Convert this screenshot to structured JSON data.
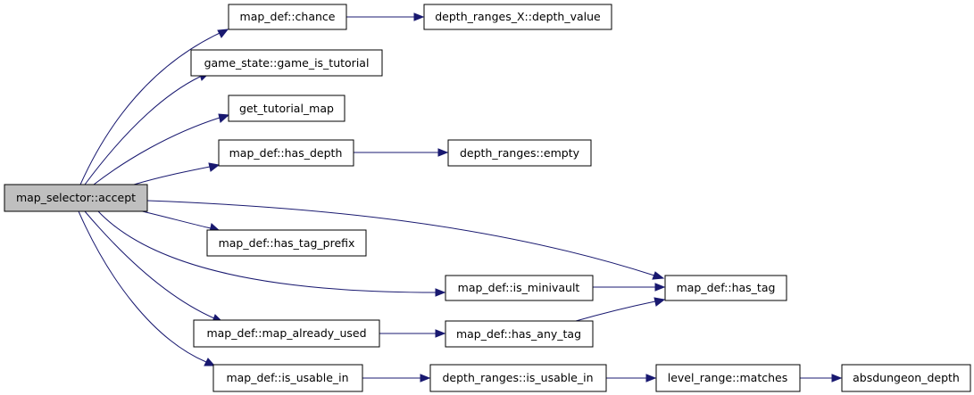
{
  "diagram": {
    "nodes": {
      "accept": "map_selector::accept",
      "chance": "map_def::chance",
      "depth_value": "depth_ranges_X::depth_value",
      "game_is_tutorial": "game_state::game_is_tutorial",
      "get_tutorial_map": "get_tutorial_map",
      "has_depth": "map_def::has_depth",
      "empty": "depth_ranges::empty",
      "has_tag_prefix": "map_def::has_tag_prefix",
      "is_minivault": "map_def::is_minivault",
      "has_tag": "map_def::has_tag",
      "map_already_used": "map_def::map_already_used",
      "has_any_tag": "map_def::has_any_tag",
      "is_usable_in": "map_def::is_usable_in",
      "dr_is_usable_in": "depth_ranges::is_usable_in",
      "matches": "level_range::matches",
      "absdungeon_depth": "absdungeon_depth"
    },
    "colors": {
      "edge": "#191970",
      "root_fill": "#bfbfbf",
      "node_fill": "#ffffff",
      "node_border": "#000000"
    }
  }
}
